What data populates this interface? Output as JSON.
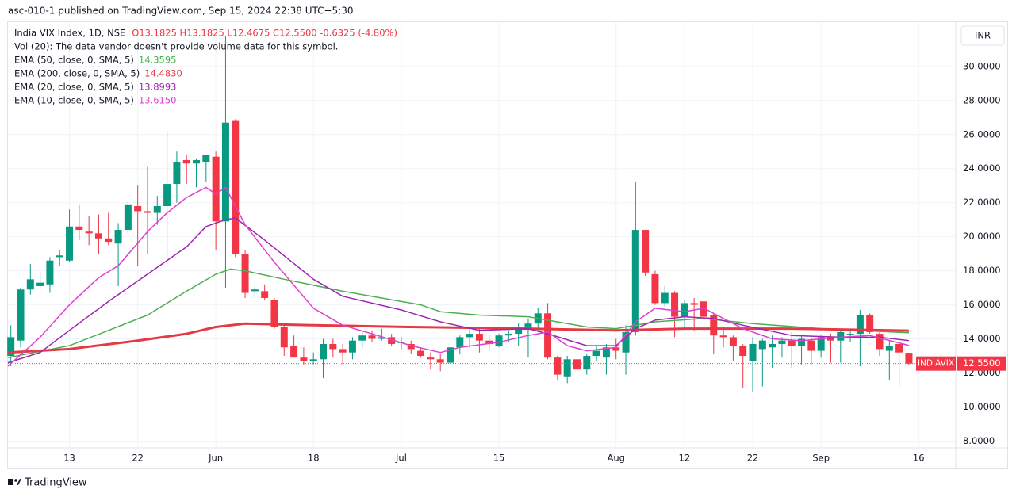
{
  "chart_data": {
    "type": "candlestick",
    "header": "asc-010-1 published on TradingView.com, Sep 15, 2024 22:38 UTC+5:30",
    "title": "India VIX Index, 1D, NSE",
    "ohlc_text": "O13.1825 H13.1825 L12.4675 C12.5500 -0.6325 (-4.80%)",
    "volume_note": "Vol (20): The data vendor doesn't provide volume data for this symbol.",
    "currency": "INR",
    "symbol": "INDIAVIX",
    "last_price": {
      "value": 12.55,
      "label": "12.5500"
    },
    "footer": "TradingView",
    "up_color": "#089981",
    "down_color": "#f23645",
    "open": [
      13.0,
      13.9,
      16.9,
      17.1,
      17.2,
      18.8,
      18.6,
      20.6,
      20.3,
      20.2,
      19.9,
      19.6,
      20.4,
      21.8,
      21.5,
      21.4,
      21.8,
      23.1,
      24.5,
      24.3,
      24.4,
      24.7,
      20.9,
      26.8,
      19.0,
      16.8,
      16.8,
      16.3,
      14.7,
      13.6,
      12.9,
      12.7,
      12.8,
      13.7,
      13.4,
      13.2,
      13.9,
      14.2,
      14.0,
      14.1,
      13.8,
      13.7,
      13.3,
      12.9,
      12.8,
      12.6,
      13.5,
      14.1,
      14.3,
      13.9,
      13.6,
      14.2,
      14.3,
      14.6,
      14.9,
      15.5,
      12.9,
      11.8,
      12.8,
      12.2,
      13.0,
      12.9,
      13.5,
      13.2,
      14.4,
      20.4,
      17.8,
      16.1,
      16.7,
      15.3,
      16.1,
      16.2,
      15.4,
      14.2,
      14.1,
      13.6,
      12.7,
      13.4,
      13.5,
      13.7,
      13.9,
      13.6,
      13.9,
      13.3,
      14.1,
      13.9,
      14.3,
      14.3,
      15.4,
      14.3,
      13.3,
      13.7,
      13.1825
    ],
    "high": [
      14.8,
      17.0,
      18.4,
      17.9,
      18.8,
      19.2,
      21.6,
      21.9,
      21.2,
      21.3,
      21.4,
      20.8,
      22.1,
      23.0,
      24.1,
      22.4,
      26.2,
      25.0,
      24.8,
      24.6,
      24.8,
      25.0,
      31.8,
      26.9,
      19.2,
      17.1,
      17.2,
      16.4,
      14.8,
      14.2,
      13.5,
      13.2,
      14.0,
      14.0,
      13.7,
      14.1,
      14.4,
      14.5,
      14.6,
      14.3,
      14.1,
      13.9,
      13.5,
      13.2,
      13.1,
      14.0,
      14.2,
      14.7,
      14.6,
      14.2,
      14.3,
      14.5,
      14.9,
      15.2,
      15.8,
      16.1,
      13.0,
      13.0,
      13.1,
      13.1,
      13.6,
      13.7,
      14.0,
      14.8,
      23.2,
      20.4,
      18.0,
      17.1,
      16.8,
      16.3,
      16.4,
      16.4,
      15.5,
      14.7,
      14.2,
      13.7,
      14.1,
      14.0,
      14.2,
      14.1,
      14.4,
      14.2,
      14.1,
      14.2,
      14.3,
      14.6,
      14.6,
      15.7,
      15.5,
      14.4,
      13.9,
      13.8,
      13.1825
    ],
    "low": [
      12.4,
      13.5,
      16.6,
      16.9,
      16.7,
      18.3,
      18.5,
      19.8,
      19.5,
      19.0,
      19.5,
      17.1,
      20.2,
      18.3,
      19.0,
      20.7,
      18.4,
      22.0,
      23.1,
      22.9,
      23.2,
      19.2,
      17.0,
      18.8,
      16.4,
      16.4,
      16.3,
      14.6,
      13.0,
      12.9,
      12.5,
      12.5,
      11.7,
      12.9,
      12.5,
      12.8,
      13.5,
      13.8,
      13.9,
      13.6,
      13.4,
      13.1,
      12.9,
      12.2,
      12.1,
      12.5,
      13.1,
      13.5,
      13.2,
      13.3,
      13.5,
      13.8,
      13.6,
      12.9,
      14.4,
      12.8,
      11.6,
      11.4,
      11.9,
      11.9,
      12.7,
      11.9,
      12.8,
      11.9,
      14.2,
      17.7,
      16.0,
      15.9,
      14.1,
      14.7,
      14.5,
      14.1,
      13.1,
      13.5,
      12.7,
      11.1,
      10.9,
      11.2,
      12.3,
      12.9,
      12.3,
      12.5,
      12.5,
      12.9,
      12.6,
      12.6,
      13.8,
      12.4,
      14.3,
      13.0,
      11.6,
      11.2,
      12.4675
    ],
    "close": [
      14.1,
      16.9,
      17.5,
      17.3,
      18.6,
      18.9,
      20.6,
      20.4,
      20.2,
      19.9,
      19.7,
      20.4,
      21.9,
      21.5,
      21.4,
      21.8,
      23.1,
      24.4,
      24.3,
      24.5,
      24.8,
      20.9,
      26.7,
      19.0,
      16.7,
      16.9,
      16.4,
      14.7,
      13.5,
      12.9,
      12.7,
      12.8,
      13.7,
      13.4,
      13.2,
      13.9,
      14.2,
      14.0,
      14.1,
      13.7,
      13.8,
      13.4,
      13.0,
      12.8,
      12.6,
      13.5,
      14.1,
      14.3,
      13.9,
      13.7,
      14.2,
      14.3,
      14.6,
      14.9,
      15.5,
      12.9,
      11.9,
      12.8,
      12.2,
      13.0,
      13.3,
      13.5,
      13.3,
      14.4,
      20.4,
      17.9,
      16.1,
      16.7,
      15.3,
      16.1,
      16.0,
      15.3,
      14.2,
      14.1,
      13.6,
      13.0,
      13.7,
      13.9,
      13.7,
      13.9,
      13.6,
      14.0,
      13.3,
      14.1,
      13.9,
      14.4,
      14.3,
      15.4,
      14.4,
      13.4,
      13.6,
      13.2,
      12.55
    ],
    "series": [
      {
        "name": "EMA (50, close, 0, SMA, 5)",
        "color": "#4caf50",
        "line_width": 1.5,
        "value_label": "14.3595",
        "x": [
          -0.3,
          6,
          10,
          14,
          18,
          21,
          22.5,
          24,
          28,
          34,
          42,
          44,
          48,
          53,
          59,
          62,
          66,
          71,
          76,
          83,
          92
        ],
        "values": [
          12.9,
          13.6,
          14.5,
          15.4,
          16.8,
          17.8,
          18.1,
          18.0,
          17.5,
          16.8,
          16.0,
          15.6,
          15.4,
          15.3,
          14.7,
          14.6,
          15.0,
          15.2,
          14.9,
          14.6,
          14.3595
        ]
      },
      {
        "name": "EMA (200, close, 0, SMA, 5)",
        "color": "#e53945",
        "line_width": 3,
        "value_label": "14.4830",
        "x": [
          -0.3,
          6,
          13,
          18,
          21,
          24,
          31,
          41,
          53,
          62,
          69,
          80,
          92
        ],
        "values": [
          13.2,
          13.4,
          13.9,
          14.3,
          14.7,
          14.9,
          14.8,
          14.7,
          14.6,
          14.5,
          14.6,
          14.6,
          14.483
        ]
      },
      {
        "name": "EMA (20, close, 0, SMA, 5)",
        "color": "#9c27b0",
        "line_width": 1.5,
        "value_label": "13.8993",
        "x": [
          -0.3,
          3,
          6,
          10,
          14,
          18,
          20,
          21,
          22,
          23,
          26,
          31,
          34,
          40,
          44,
          48,
          53,
          55,
          59,
          62,
          64,
          66,
          69,
          72,
          75,
          80,
          85,
          89,
          92
        ],
        "values": [
          12.6,
          13.2,
          14.5,
          16.2,
          17.8,
          19.4,
          20.6,
          20.8,
          21.0,
          21.1,
          19.8,
          17.5,
          16.5,
          15.7,
          15.0,
          14.5,
          14.6,
          14.3,
          13.6,
          13.6,
          14.6,
          15.1,
          15.3,
          15.2,
          14.8,
          14.2,
          14.1,
          14.1,
          13.8993
        ]
      },
      {
        "name": "EMA (10, close, 0, SMA, 5)",
        "color": "#e040d0",
        "line_width": 1.5,
        "value_label": "13.6150",
        "x": [
          -0.3,
          3,
          6,
          9,
          11,
          14,
          16,
          18,
          20,
          21,
          22,
          24,
          27,
          31,
          34,
          37,
          41,
          44,
          46,
          50,
          53,
          55,
          57,
          59,
          62,
          64,
          66,
          69,
          71,
          73,
          75,
          78,
          81,
          85,
          88,
          92
        ],
        "values": [
          12.4,
          14.1,
          16.0,
          17.6,
          18.3,
          20.3,
          21.4,
          22.3,
          22.9,
          22.5,
          22.9,
          20.7,
          18.5,
          15.8,
          14.8,
          14.3,
          13.6,
          13.2,
          13.5,
          13.8,
          14.2,
          14.4,
          13.6,
          13.3,
          13.5,
          15.0,
          15.8,
          15.6,
          15.8,
          15.2,
          14.6,
          14.0,
          13.9,
          14.1,
          14.2,
          13.615
        ]
      }
    ],
    "xlim": [
      -0.3,
      96.8
    ],
    "ylim": [
      7.6,
      32.6
    ],
    "yticks": [
      {
        "value": 8,
        "label": "8.0000"
      },
      {
        "value": 10,
        "label": "10.0000"
      },
      {
        "value": 12,
        "label": "12.0000"
      },
      {
        "value": 14,
        "label": "14.0000"
      },
      {
        "value": 16,
        "label": "16.0000"
      },
      {
        "value": 18,
        "label": "18.0000"
      },
      {
        "value": 20,
        "label": "20.0000"
      },
      {
        "value": 22,
        "label": "22.0000"
      },
      {
        "value": 24,
        "label": "24.0000"
      },
      {
        "value": 26,
        "label": "26.0000"
      },
      {
        "value": 28,
        "label": "28.0000"
      },
      {
        "value": 30,
        "label": "30.0000"
      }
    ],
    "xticks": [
      {
        "value": 6,
        "label": "13"
      },
      {
        "value": 13,
        "label": "22"
      },
      {
        "value": 21,
        "label": "Jun"
      },
      {
        "value": 31,
        "label": "18"
      },
      {
        "value": 40,
        "label": "Jul"
      },
      {
        "value": 50,
        "label": "15"
      },
      {
        "value": 62,
        "label": "Aug"
      },
      {
        "value": 69,
        "label": "12"
      },
      {
        "value": 76,
        "label": "22"
      },
      {
        "value": 83,
        "label": "Sep"
      },
      {
        "value": 93,
        "label": "16"
      }
    ],
    "grid": true
  }
}
